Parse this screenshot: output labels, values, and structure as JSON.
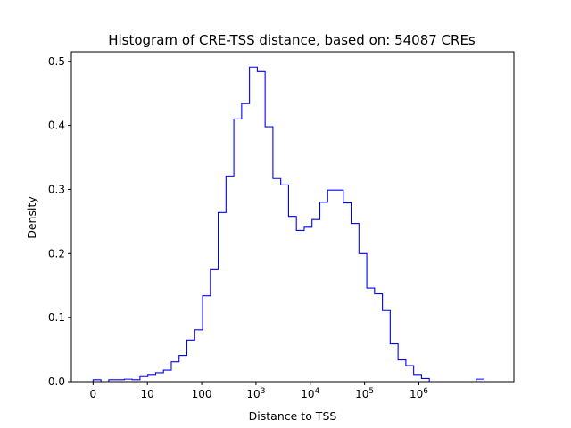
{
  "chart_data": {
    "type": "histogram",
    "title": "Histogram of CRE-TSS distance, based on: 54087 CREs",
    "xlabel": "Distance to TSS",
    "ylabel": "Density",
    "x_scale": "log10(distance + 1)",
    "xlim": [
      -0.4,
      7.75
    ],
    "ylim": [
      0,
      0.515
    ],
    "grid": false,
    "legend": "none",
    "line_color": "#0000ff",
    "x_ticks": [
      {
        "value": 0,
        "label": "0"
      },
      {
        "value": 1,
        "label": "10"
      },
      {
        "value": 2,
        "label": "100"
      },
      {
        "value": 3,
        "label": "10",
        "sup": "3"
      },
      {
        "value": 4,
        "label": "10",
        "sup": "4"
      },
      {
        "value": 5,
        "label": "10",
        "sup": "5"
      },
      {
        "value": 6,
        "label": "10",
        "sup": "6"
      }
    ],
    "y_ticks": [
      {
        "value": 0.0,
        "label": "0.0"
      },
      {
        "value": 0.1,
        "label": "0.1"
      },
      {
        "value": 0.2,
        "label": "0.2"
      },
      {
        "value": 0.3,
        "label": "0.3"
      },
      {
        "value": 0.4,
        "label": "0.4"
      },
      {
        "value": 0.5,
        "label": "0.5"
      }
    ],
    "bin_edges": [
      0,
      0.144,
      0.288,
      0.432,
      0.576,
      0.72,
      0.864,
      1.008,
      1.152,
      1.296,
      1.44,
      1.584,
      1.728,
      1.872,
      2.016,
      2.16,
      2.304,
      2.448,
      2.592,
      2.736,
      2.88,
      3.024,
      3.168,
      3.312,
      3.456,
      3.6,
      3.744,
      3.888,
      4.032,
      4.176,
      4.32,
      4.464,
      4.608,
      4.752,
      4.896,
      5.04,
      5.184,
      5.328,
      5.472,
      5.616,
      5.76,
      5.904,
      6.048,
      6.192,
      6.336,
      6.48,
      6.624,
      6.768,
      6.912,
      7.056,
      7.2
    ],
    "densities": [
      0.003,
      0.0,
      0.003,
      0.003,
      0.004,
      0.003,
      0.008,
      0.01,
      0.014,
      0.018,
      0.031,
      0.041,
      0.065,
      0.081,
      0.134,
      0.175,
      0.264,
      0.321,
      0.41,
      0.434,
      0.491,
      0.484,
      0.398,
      0.317,
      0.307,
      0.258,
      0.236,
      0.241,
      0.253,
      0.28,
      0.299,
      0.299,
      0.279,
      0.247,
      0.2,
      0.146,
      0.137,
      0.111,
      0.059,
      0.034,
      0.025,
      0.01,
      0.005,
      0.0,
      0.0,
      0.0,
      0.0,
      0.0,
      0.0,
      0.004
    ]
  }
}
